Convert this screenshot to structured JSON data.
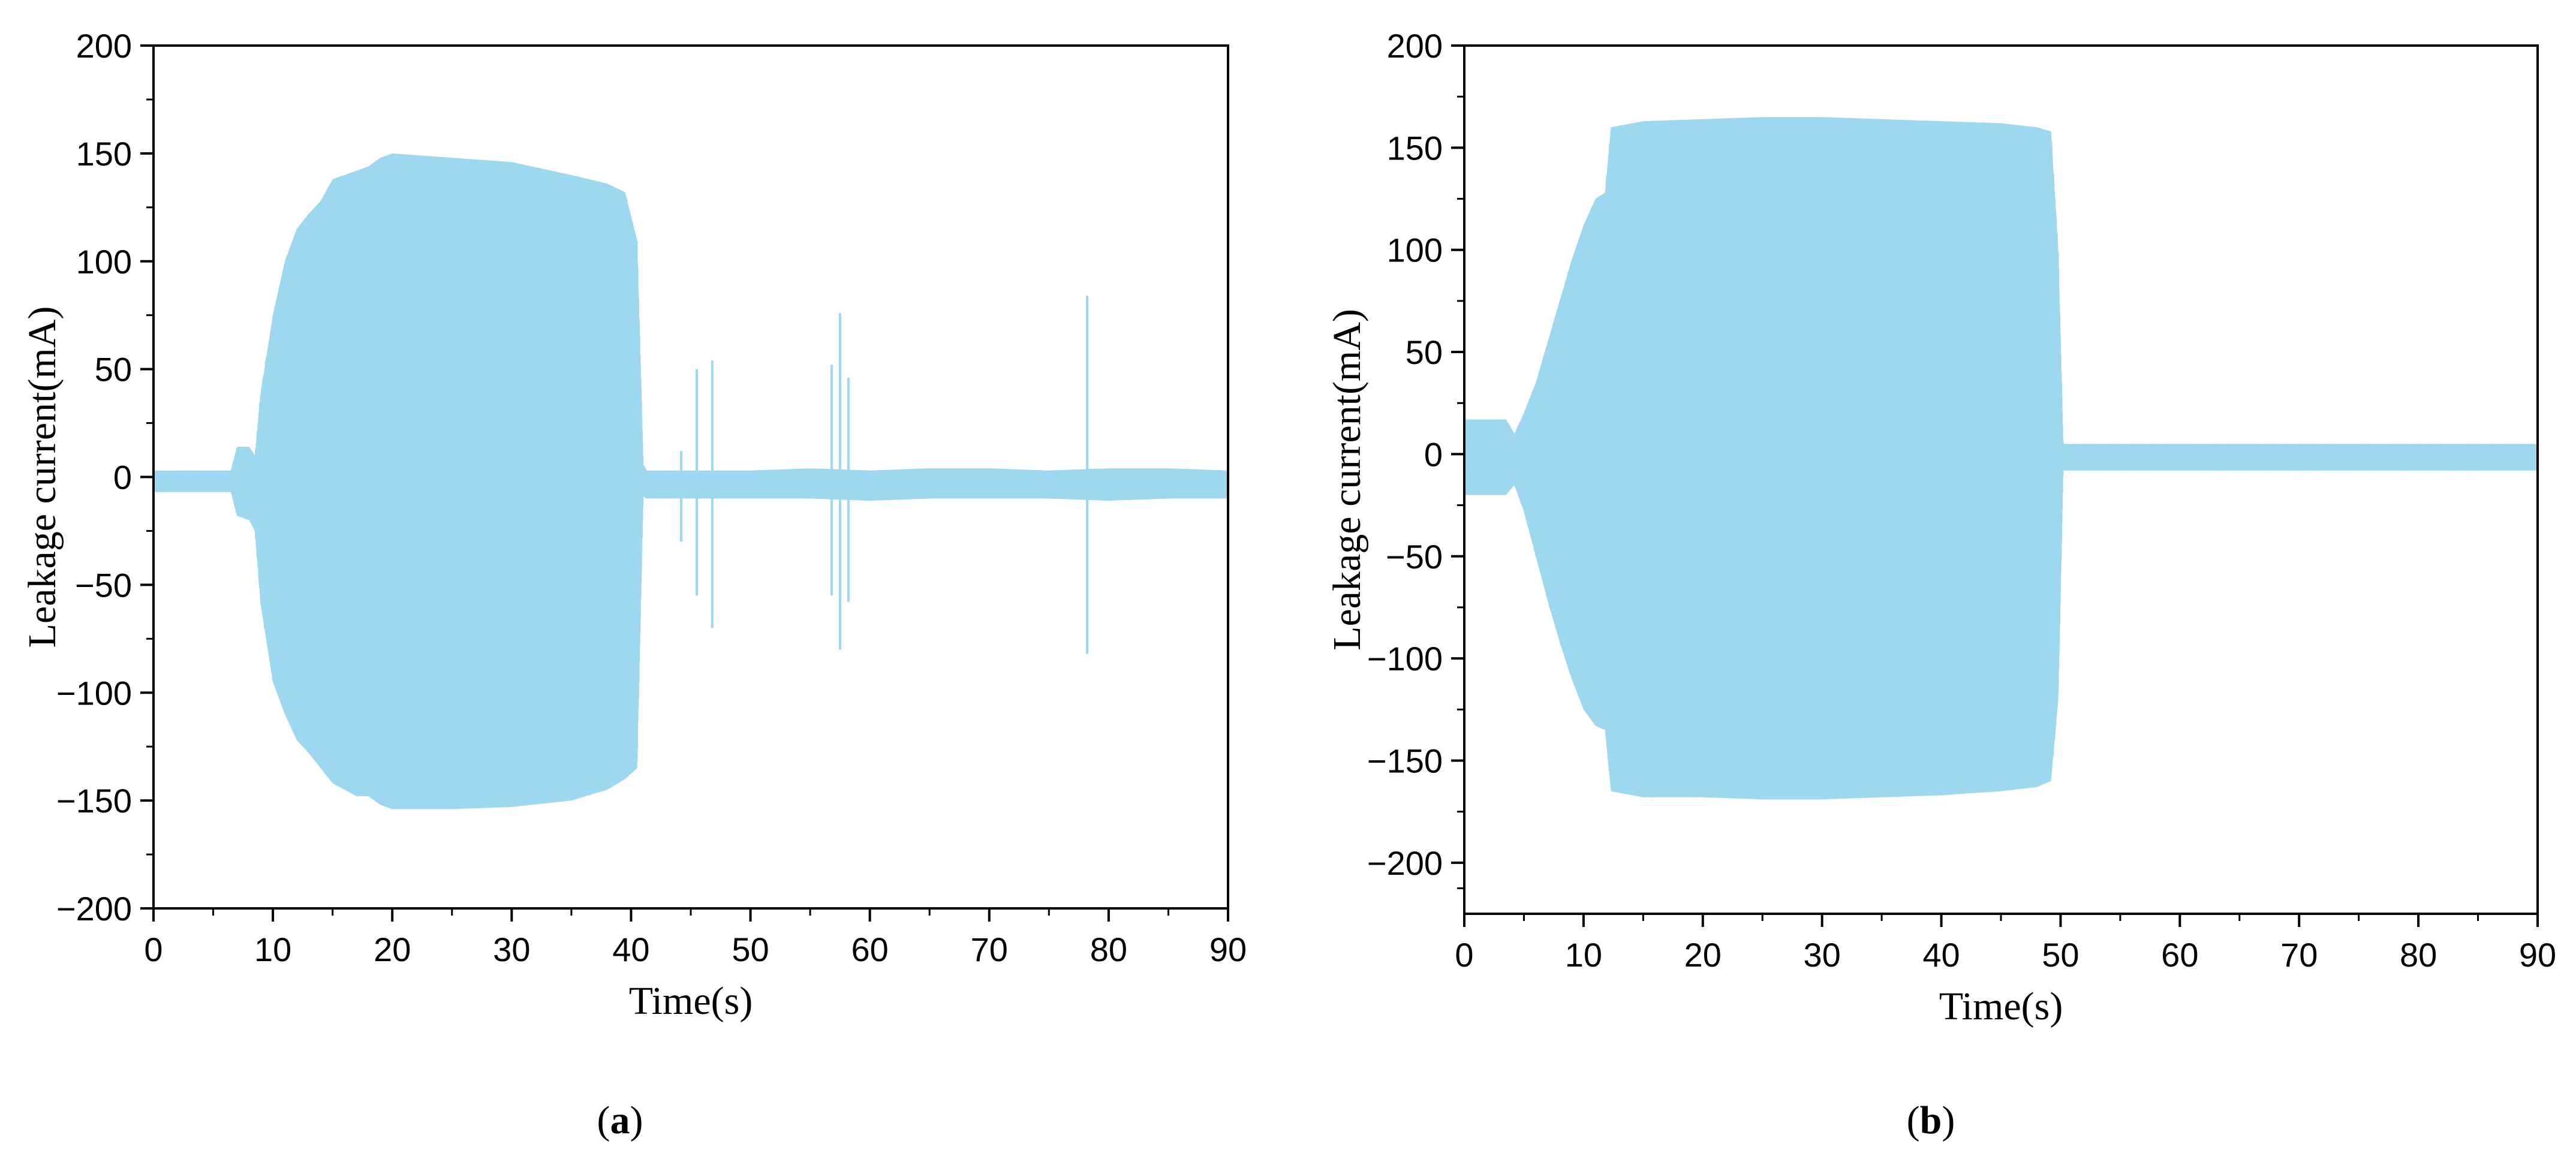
{
  "chart_data": [
    {
      "type": "area",
      "panel_label": "a",
      "xlabel": "Time(s)",
      "ylabel": "Leakage current(mA)",
      "xlim": [
        0,
        90
      ],
      "ylim": [
        -200,
        200
      ],
      "x_ticks": [
        0,
        10,
        20,
        30,
        40,
        50,
        60,
        70,
        80,
        90
      ],
      "y_ticks": [
        -200,
        -150,
        -100,
        -50,
        0,
        50,
        100,
        150,
        200
      ],
      "grid": false,
      "color": "#9dd7f0",
      "envelope": {
        "x": [
          0,
          6.5,
          7,
          8,
          8.5,
          9,
          10,
          11,
          12,
          13,
          14,
          15,
          17,
          18,
          19,
          20,
          25,
          30,
          35,
          38,
          39.5,
          40.5,
          41,
          41.3,
          45,
          50,
          55,
          60,
          65,
          70,
          75,
          80,
          85,
          90
        ],
        "upper": [
          3,
          3,
          14,
          14,
          10,
          40,
          75,
          100,
          115,
          122,
          128,
          138,
          142,
          144,
          148,
          150,
          148,
          146,
          140,
          136,
          132,
          110,
          6,
          3,
          3,
          3,
          4,
          3,
          4,
          4,
          3,
          4,
          4,
          3
        ],
        "lower": [
          -7,
          -7,
          -18,
          -20,
          -25,
          -60,
          -95,
          -110,
          -122,
          -128,
          -135,
          -142,
          -148,
          -148,
          -152,
          -154,
          -154,
          -153,
          -150,
          -145,
          -140,
          -135,
          -9,
          -10,
          -10,
          -10,
          -10,
          -11,
          -10,
          -10,
          -10,
          -11,
          -10,
          -10
        ]
      },
      "spikes": [
        {
          "x": 45.5,
          "y": [
            -55,
            50
          ]
        },
        {
          "x": 46.8,
          "y": [
            -70,
            54
          ]
        },
        {
          "x": 44.2,
          "y": [
            -30,
            12
          ]
        },
        {
          "x": 56.8,
          "y": [
            -55,
            52
          ]
        },
        {
          "x": 57.5,
          "y": [
            -80,
            76
          ]
        },
        {
          "x": 58.2,
          "y": [
            -58,
            46
          ]
        },
        {
          "x": 78.2,
          "y": [
            -82,
            84
          ]
        }
      ]
    },
    {
      "type": "area",
      "panel_label": "b",
      "xlabel": "Time(s)",
      "ylabel": "Leakage current(mA)",
      "xlim": [
        0,
        90
      ],
      "ylim": [
        -225,
        200
      ],
      "x_ticks": [
        0,
        10,
        20,
        30,
        40,
        50,
        60,
        70,
        80,
        90
      ],
      "y_ticks": [
        -200,
        -150,
        -100,
        -50,
        0,
        50,
        100,
        150,
        200
      ],
      "grid": false,
      "color": "#9dd7f0",
      "envelope": {
        "x": [
          0,
          3.5,
          4.2,
          5,
          6,
          7,
          8,
          9,
          10,
          11,
          11.8,
          12.3,
          15,
          20,
          25,
          30,
          35,
          40,
          45,
          48,
          49.2,
          49.8,
          50.2,
          55,
          60,
          70,
          80,
          90
        ],
        "upper": [
          17,
          17,
          10,
          20,
          35,
          55,
          75,
          95,
          112,
          125,
          128,
          160,
          163,
          164,
          165,
          165,
          164,
          163,
          162,
          160,
          158,
          100,
          5,
          5,
          5,
          5,
          5,
          5
        ],
        "lower": [
          -20,
          -20,
          -15,
          -28,
          -50,
          -72,
          -92,
          -110,
          -125,
          -133,
          -135,
          -165,
          -168,
          -168,
          -169,
          -169,
          -168,
          -167,
          -165,
          -163,
          -160,
          -120,
          -8,
          -8,
          -8,
          -8,
          -8,
          -8
        ]
      },
      "spikes": []
    }
  ]
}
